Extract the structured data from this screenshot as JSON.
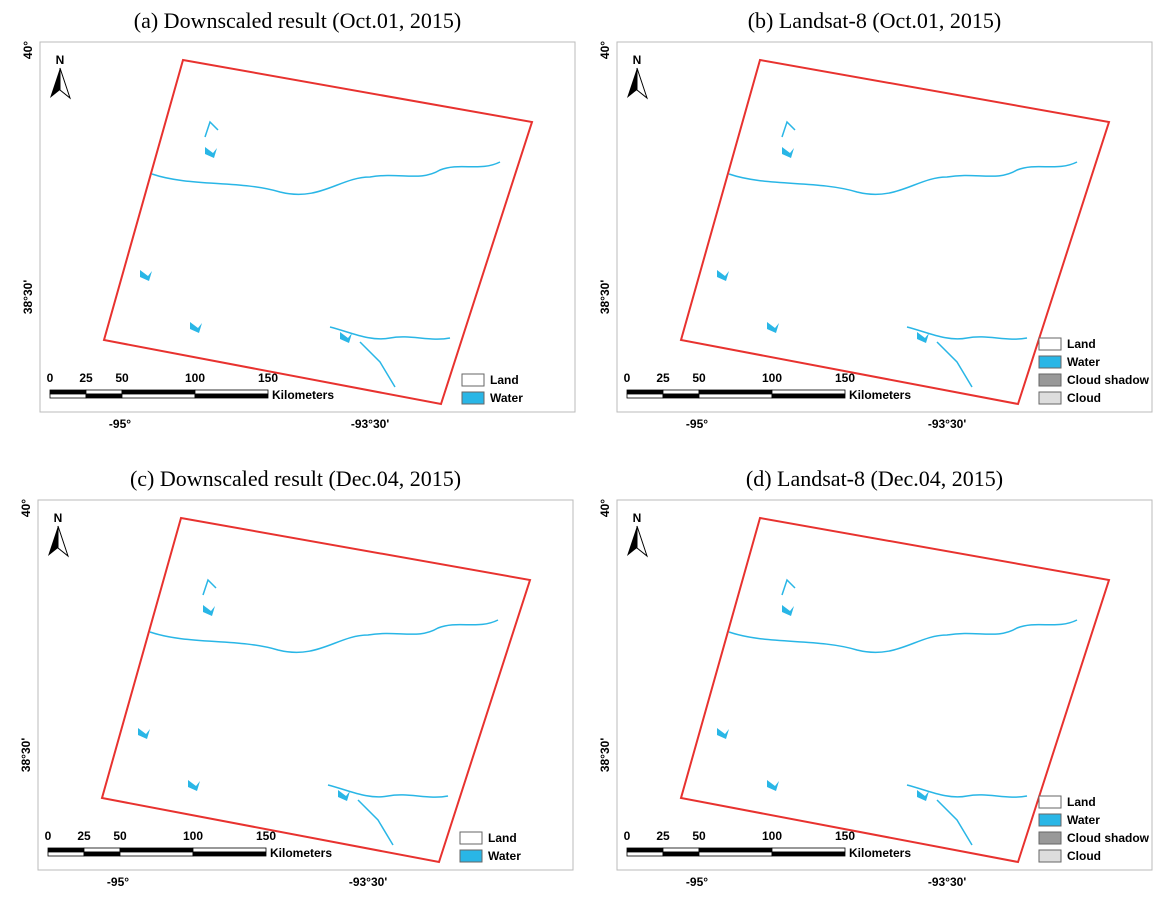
{
  "panels": [
    {
      "title": "(a)  Downscaled result (Oct.01, 2015)",
      "lat_labels": [
        "40°",
        "38°30'"
      ],
      "lon_labels": [
        "-95°",
        "-93°30'"
      ],
      "north": "N",
      "scale_labels": [
        "0",
        "25",
        "50",
        "100",
        "150"
      ],
      "scale_unit": "Kilometers",
      "legend": [
        {
          "label": "Land",
          "color": "#ffffff"
        },
        {
          "label": "Water",
          "color": "#29b6e6"
        }
      ]
    },
    {
      "title": "(b)  Landsat-8 (Oct.01, 2015)",
      "lat_labels": [
        "40°",
        "38°30'"
      ],
      "lon_labels": [
        "-95°",
        "-93°30'"
      ],
      "north": "N",
      "scale_labels": [
        "0",
        "25",
        "50",
        "100",
        "150"
      ],
      "scale_unit": "Kilometers",
      "legend": [
        {
          "label": "Land",
          "color": "#ffffff"
        },
        {
          "label": "Water",
          "color": "#29b6e6"
        },
        {
          "label": "Cloud shadow",
          "color": "#999999"
        },
        {
          "label": "Cloud",
          "color": "#dddddd"
        }
      ]
    },
    {
      "title": "(c)  Downscaled result (Dec.04, 2015)",
      "lat_labels": [
        "40°",
        "38°30'"
      ],
      "lon_labels": [
        "-95°",
        "-93°30'"
      ],
      "north": "N",
      "scale_labels": [
        "0",
        "25",
        "50",
        "100",
        "150"
      ],
      "scale_unit": "Kilometers",
      "legend": [
        {
          "label": "Land",
          "color": "#ffffff"
        },
        {
          "label": "Water",
          "color": "#29b6e6"
        }
      ]
    },
    {
      "title": "(d)  Landsat-8 (Dec.04, 2015)",
      "lat_labels": [
        "40°",
        "38°30'"
      ],
      "lon_labels": [
        "-95°",
        "-93°30'"
      ],
      "north": "N",
      "scale_labels": [
        "0",
        "25",
        "50",
        "100",
        "150"
      ],
      "scale_unit": "Kilometers",
      "legend": [
        {
          "label": "Land",
          "color": "#ffffff"
        },
        {
          "label": "Water",
          "color": "#29b6e6"
        },
        {
          "label": "Cloud shadow",
          "color": "#999999"
        },
        {
          "label": "Cloud",
          "color": "#dddddd"
        }
      ]
    }
  ]
}
